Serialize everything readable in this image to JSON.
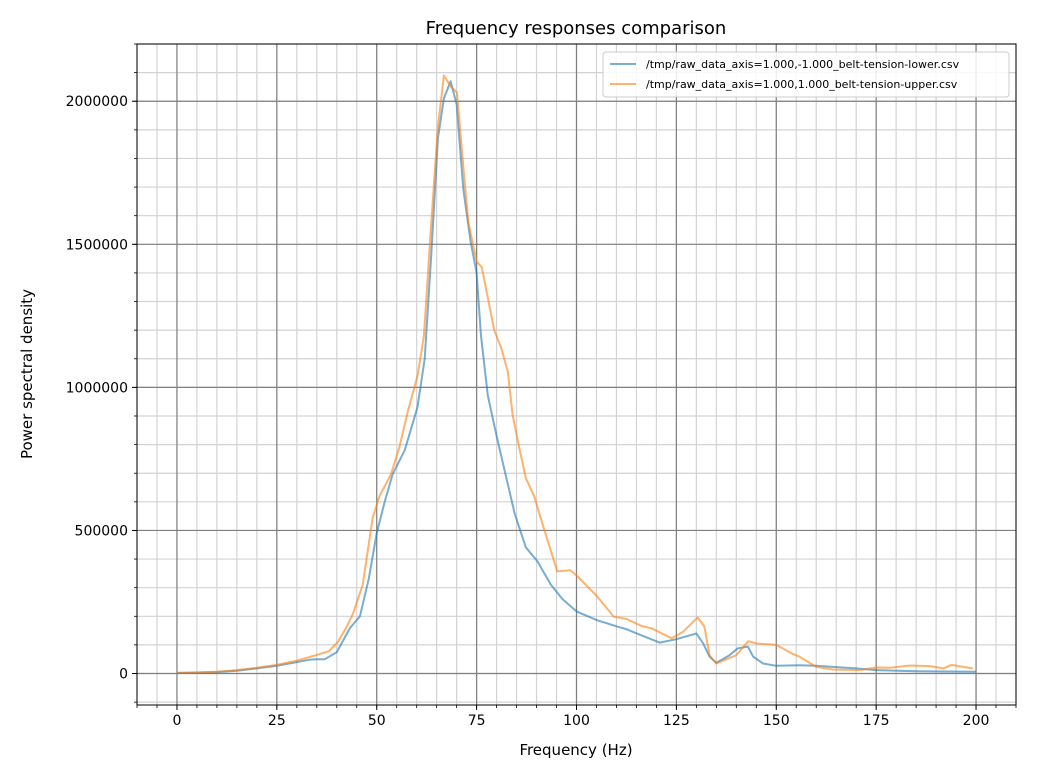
{
  "chart_data": {
    "type": "line",
    "title": "Frequency responses comparison",
    "xlabel": "Frequency (Hz)",
    "ylabel": "Power spectral density",
    "xlim": [
      -10,
      210
    ],
    "ylim": [
      -110000,
      2200000
    ],
    "xticks": [
      0,
      25,
      50,
      75,
      100,
      125,
      150,
      175,
      200
    ],
    "xtick_labels": [
      "0",
      "25",
      "50",
      "75",
      "100",
      "125",
      "150",
      "175",
      "200"
    ],
    "yticks": [
      0,
      500000,
      1000000,
      1500000,
      2000000
    ],
    "ytick_labels": [
      "0",
      "500000",
      "1000000",
      "1500000",
      "2000000"
    ],
    "x_minor_step": 5,
    "y_minor_step": 100000,
    "grid": "major and minor",
    "legend_position": "top-right",
    "series": [
      {
        "name": "/tmp/raw_data_axis=1.000,-1.000_belt-tension-lower.csv",
        "color": "#1f77b4",
        "x": [
          0,
          5,
          10,
          15,
          20,
          25,
          30,
          33,
          35,
          37,
          40,
          43.3,
          45.8,
          48,
          50,
          52,
          54,
          57,
          60.2,
          62,
          63.6,
          65.3,
          66.8,
          68.5,
          70,
          71.7,
          73.5,
          75,
          76.1,
          77.8,
          80,
          82,
          84.5,
          87.3,
          90.2,
          93.6,
          96.5,
          100,
          105.2,
          110.2,
          112.5,
          116,
          120.8,
          125,
          130,
          131.7,
          133.3,
          135,
          138.3,
          140.4,
          142.9,
          144.2,
          146.7,
          150,
          155.8,
          160,
          164.2,
          170,
          175,
          185,
          200
        ],
        "y": [
          2000,
          3000,
          5000,
          10000,
          18000,
          27000,
          40000,
          48000,
          50000,
          50000,
          75000,
          159000,
          200000,
          330000,
          490000,
          600000,
          697000,
          780000,
          931000,
          1100000,
          1455000,
          1870000,
          2010000,
          2070000,
          1990000,
          1690000,
          1510000,
          1400000,
          1180000,
          972000,
          830000,
          710000,
          560000,
          441000,
          393000,
          310000,
          260000,
          217000,
          186000,
          164000,
          155000,
          135000,
          108000,
          120000,
          140000,
          105000,
          59000,
          37000,
          64000,
          88000,
          94000,
          59000,
          35000,
          27000,
          29000,
          27000,
          23000,
          18000,
          12000,
          8000,
          6000
        ]
      },
      {
        "name": "/tmp/raw_data_axis=1.000,1.000_belt-tension-upper.csv",
        "color": "#ff7f0e",
        "x": [
          0,
          5,
          10,
          15,
          20,
          25,
          30,
          35,
          38,
          40.25,
          42.3,
          44,
          46.5,
          49,
          50.7,
          53.6,
          55.7,
          57.8,
          60.2,
          61.8,
          63.6,
          65.3,
          66.8,
          68.6,
          70.1,
          71.5,
          72.9,
          75,
          76.3,
          79.4,
          81.1,
          82.8,
          84,
          85.7,
          87.3,
          89.4,
          92,
          95.2,
          98.5,
          100.2,
          105.2,
          109.3,
          112.5,
          116.3,
          118.8,
          123.8,
          126.7,
          130.3,
          132,
          133.3,
          135,
          140,
          143,
          145,
          150,
          154.2,
          155.8,
          160,
          164.2,
          170.8,
          175,
          178.5,
          183.5,
          188.5,
          191.8,
          193.8,
          199.2
        ],
        "y": [
          3000,
          4000,
          6000,
          12000,
          20000,
          30000,
          45000,
          65000,
          78000,
          110000,
          159000,
          207000,
          310000,
          545000,
          620000,
          697000,
          793000,
          917000,
          1040000,
          1180000,
          1566000,
          1910000,
          2090000,
          2050000,
          2030000,
          1800000,
          1580000,
          1440000,
          1420000,
          1200000,
          1140000,
          1055000,
          903000,
          786000,
          683000,
          620000,
          500000,
          357000,
          361000,
          340000,
          269000,
          199000,
          191000,
          166000,
          158000,
          123000,
          146000,
          196000,
          164000,
          64000,
          35000,
          64000,
          113000,
          105000,
          100000,
          68000,
          59000,
          23000,
          14000,
          12000,
          21000,
          20000,
          28000,
          26000,
          18000,
          30000,
          18000
        ]
      }
    ]
  }
}
